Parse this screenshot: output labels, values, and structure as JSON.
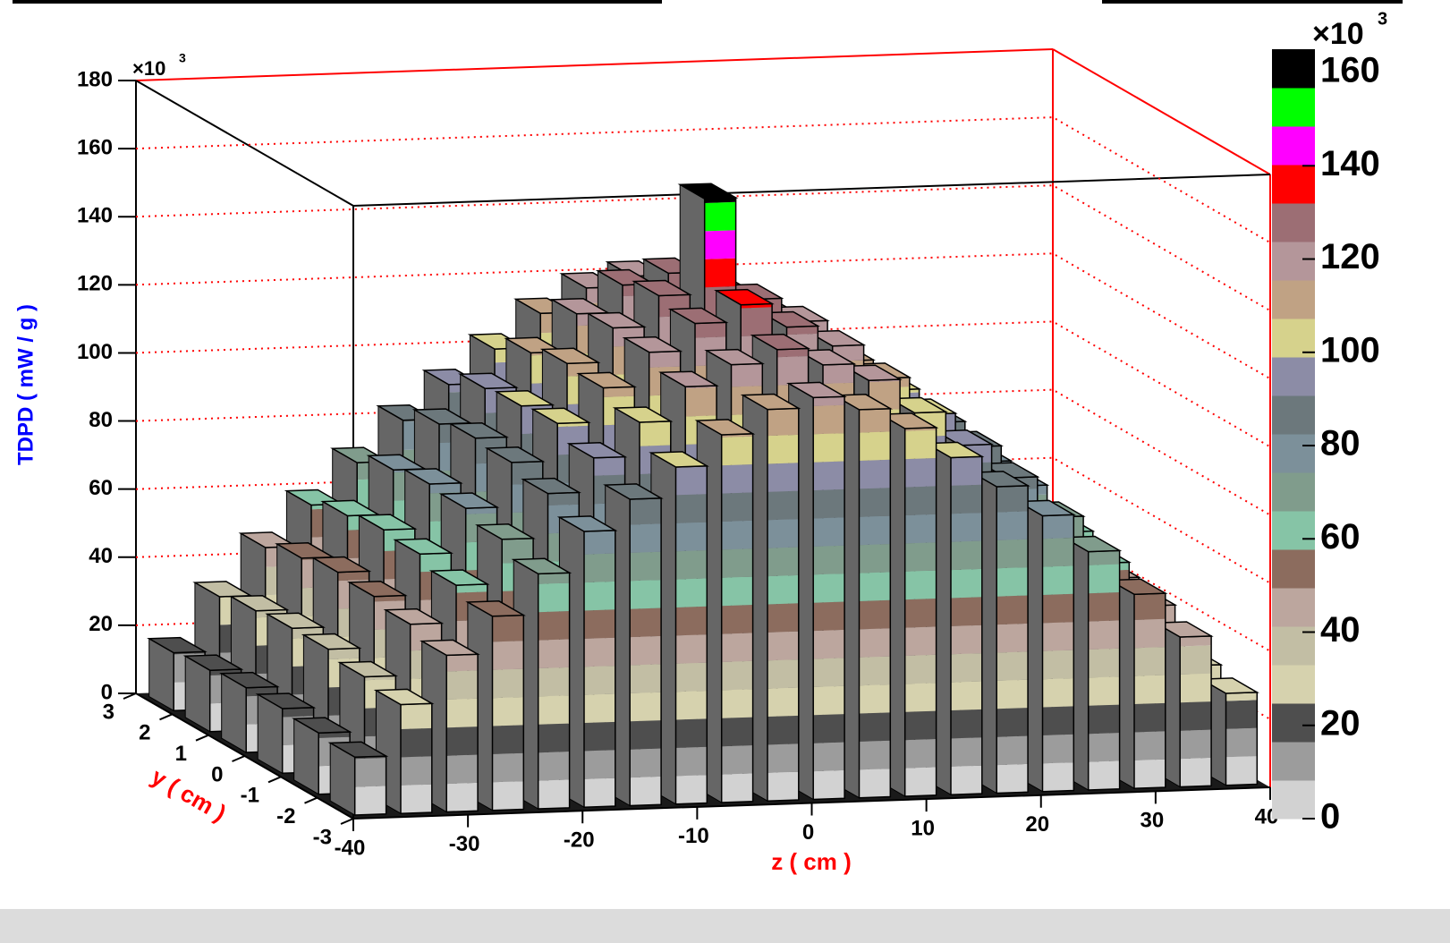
{
  "chart_data": {
    "type": "lego",
    "value_axis_title": "TDPD ( mW / g )",
    "x_axis_title": "z ( cm )",
    "y_axis_title": "y ( cm )",
    "value_multiplier": {
      "base": "×10",
      "exponent": "3"
    },
    "colorbar_multiplier": {
      "base": "×10",
      "exponent": "3"
    },
    "x": [
      -38,
      -34,
      -30,
      -26,
      -22,
      -18,
      -14,
      -10,
      -6,
      -2,
      2,
      6,
      10,
      14,
      18,
      22,
      26,
      30,
      34,
      38
    ],
    "y": [
      -2.5,
      -1.5,
      -0.5,
      0.5,
      1.5,
      2.5
    ],
    "values": [
      [
        17,
        32,
        46,
        57,
        69,
        81,
        90,
        99,
        108,
        115,
        118,
        114,
        108,
        99,
        90,
        81,
        70,
        57,
        44,
        27
      ],
      [
        18,
        34,
        49,
        60,
        73,
        86,
        96,
        106,
        116,
        122,
        126,
        121,
        116,
        106,
        96,
        86,
        74,
        60,
        47,
        29
      ],
      [
        19,
        36,
        51,
        63,
        76,
        89,
        100,
        110,
        120,
        128,
        133,
        126,
        120,
        110,
        99,
        89,
        77,
        63,
        49,
        31
      ],
      [
        19,
        36,
        52,
        64,
        77,
        90,
        99,
        111,
        121,
        130,
        158,
        128,
        121,
        109,
        100,
        90,
        78,
        64,
        50,
        31
      ],
      [
        18,
        35,
        50,
        62,
        75,
        88,
        98,
        108,
        119,
        127,
        130,
        125,
        118,
        108,
        98,
        88,
        76,
        62,
        48,
        30
      ],
      [
        17,
        33,
        47,
        59,
        71,
        83,
        93,
        103,
        113,
        120,
        123,
        119,
        113,
        103,
        93,
        83,
        72,
        59,
        46,
        28
      ]
    ],
    "xlim": [
      -40,
      40
    ],
    "xticks": [
      -40,
      -30,
      -20,
      -10,
      0,
      10,
      20,
      30,
      40
    ],
    "ylim": [
      -3,
      3
    ],
    "yticks": [
      -3,
      -2,
      -1,
      0,
      1,
      2,
      3
    ],
    "zlim": [
      0,
      180
    ],
    "zticks": [
      0,
      20,
      40,
      60,
      80,
      100,
      120,
      140,
      160,
      180
    ],
    "grid": true,
    "colorbar_lim": [
      0,
      165
    ],
    "colorbar_ticks": [
      0,
      20,
      40,
      60,
      80,
      100,
      120,
      140,
      160
    ],
    "palette": [
      "#d2d2d2",
      "#9c9c9c",
      "#4e4e4e",
      "#d6d2ae",
      "#c2bea4",
      "#bca69e",
      "#8c6c5e",
      "#86c4a6",
      "#809c8c",
      "#7c909a",
      "#6c787c",
      "#8c8ca6",
      "#d6d28c",
      "#c0a284",
      "#b4969a",
      "#9c6e74",
      "#ff0000",
      "#ff00ff",
      "#00ff00",
      "#000000"
    ]
  }
}
